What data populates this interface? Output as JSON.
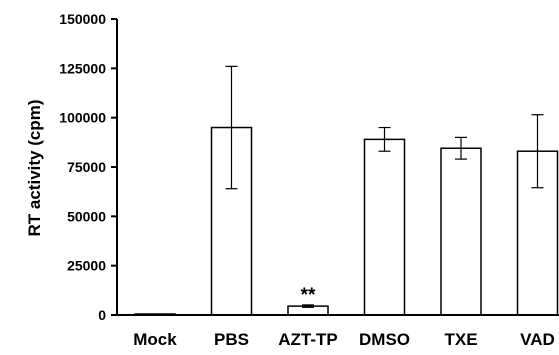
{
  "chart_data": {
    "type": "bar",
    "title": "",
    "xlabel": "",
    "ylabel": "RT activity (cpm)",
    "ylim": [
      0,
      150000
    ],
    "yticks": [
      0,
      25000,
      50000,
      75000,
      100000,
      125000,
      150000
    ],
    "ytick_labels": [
      "0",
      "25000",
      "50000",
      "75000",
      "100000",
      "125000",
      "150000"
    ],
    "categories": [
      "Mock",
      "PBS",
      "AZT-TP",
      "DMSO",
      "TXE",
      "VAD"
    ],
    "values": [
      300,
      95000,
      4500,
      89000,
      84500,
      83000
    ],
    "errors": [
      0,
      31000,
      600,
      6000,
      5500,
      18500
    ],
    "annotations": [
      {
        "category": "AZT-TP",
        "text": "**"
      }
    ],
    "bar_fill": "#ffffff",
    "bar_stroke": "#000000",
    "grid": false,
    "legend": "none"
  }
}
